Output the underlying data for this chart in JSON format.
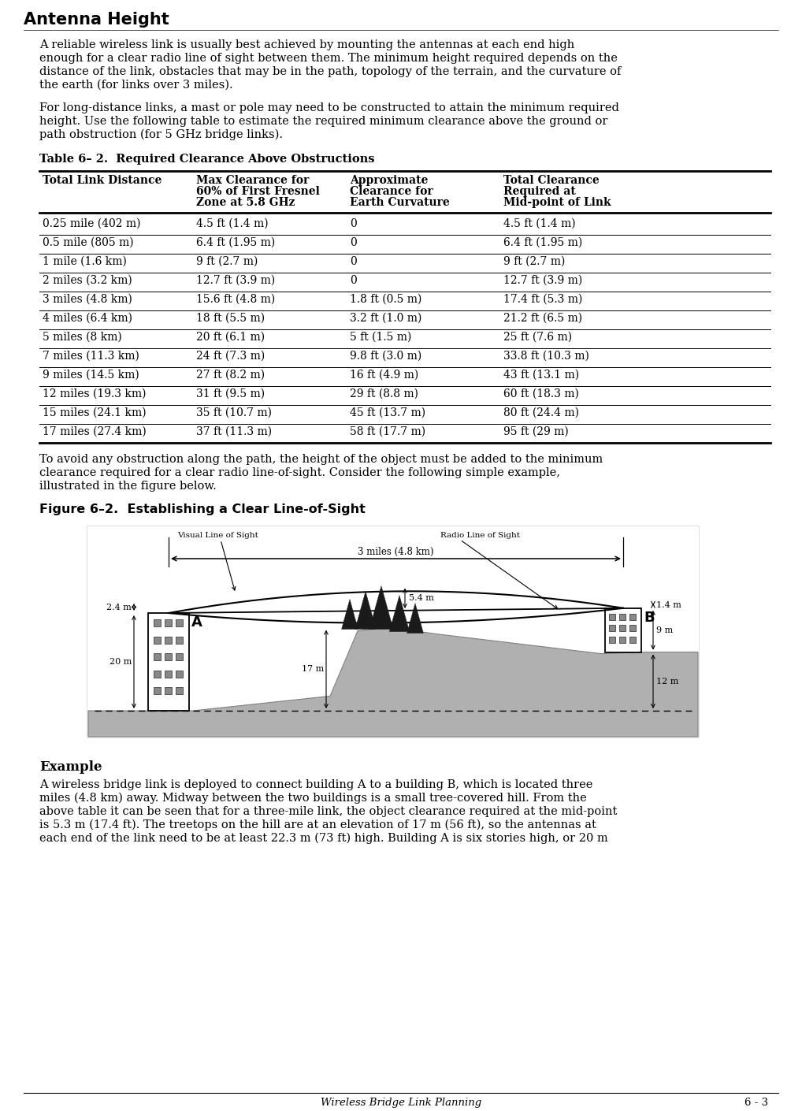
{
  "title": "Antenna Height",
  "para1_lines": [
    "A reliable wireless link is usually best achieved by mounting the antennas at each end high",
    "enough for a clear radio line of sight between them. The minimum height required depends on the",
    "distance of the link, obstacles that may be in the path, topology of the terrain, and the curvature of",
    "the earth (for links over 3 miles)."
  ],
  "para2_lines": [
    "For long-distance links, a mast or pole may need to be constructed to attain the minimum required",
    "height. Use the following table to estimate the required minimum clearance above the ground or",
    "path obstruction (for 5 GHz bridge links)."
  ],
  "table_title": "Table 6– 2.  Required Clearance Above Obstructions",
  "col_headers": [
    "Total Link Distance",
    "Max Clearance for\n60% of First Fresnel\nZone at 5.8 GHz",
    "Approximate\nClearance for\nEarth Curvature",
    "Total Clearance\nRequired at\nMid-point of Link"
  ],
  "table_data": [
    [
      "0.25 mile (402 m)",
      "4.5 ft (1.4 m)",
      "0",
      "4.5 ft (1.4 m)"
    ],
    [
      "0.5 mile (805 m)",
      "6.4 ft (1.95 m)",
      "0",
      "6.4 ft (1.95 m)"
    ],
    [
      "1 mile (1.6 km)",
      "9 ft (2.7 m)",
      "0",
      "9 ft (2.7 m)"
    ],
    [
      "2 miles (3.2 km)",
      "12.7 ft (3.9 m)",
      "0",
      "12.7 ft (3.9 m)"
    ],
    [
      "3 miles (4.8 km)",
      "15.6 ft (4.8 m)",
      "1.8 ft (0.5 m)",
      "17.4 ft (5.3 m)"
    ],
    [
      "4 miles (6.4 km)",
      "18 ft (5.5 m)",
      "3.2 ft (1.0 m)",
      "21.2 ft (6.5 m)"
    ],
    [
      "5 miles (8 km)",
      "20 ft (6.1 m)",
      "5 ft (1.5 m)",
      "25 ft (7.6 m)"
    ],
    [
      "7 miles (11.3 km)",
      "24 ft (7.3 m)",
      "9.8 ft (3.0 m)",
      "33.8 ft (10.3 m)"
    ],
    [
      "9 miles (14.5 km)",
      "27 ft (8.2 m)",
      "16 ft (4.9 m)",
      "43 ft (13.1 m)"
    ],
    [
      "12 miles (19.3 km)",
      "31 ft (9.5 m)",
      "29 ft (8.8 m)",
      "60 ft (18.3 m)"
    ],
    [
      "15 miles (24.1 km)",
      "35 ft (10.7 m)",
      "45 ft (13.7 m)",
      "80 ft (24.4 m)"
    ],
    [
      "17 miles (27.4 km)",
      "37 ft (11.3 m)",
      "58 ft (17.7 m)",
      "95 ft (29 m)"
    ]
  ],
  "para3_lines": [
    "To avoid any obstruction along the path, the height of the object must be added to the minimum",
    "clearance required for a clear radio line-of-sight. Consider the following simple example,",
    "illustrated in the figure below."
  ],
  "fig_caption": "Figure 6–2.  Establishing a Clear Line-of-Sight",
  "example_title": "Example",
  "example_lines": [
    "A wireless bridge link is deployed to connect building A to a building B, which is located three",
    "miles (4.8 km) away. Midway between the two buildings is a small tree-covered hill. From the",
    "above table it can be seen that for a three-mile link, the object clearance required at the mid-point",
    "is 5.3 m (17.4 ft). The treetops on the hill are at an elevation of 17 m (56 ft), so the antennas at",
    "each end of the link need to be at least 22.3 m (73 ft) high. Building A is six stories high, or 20 m"
  ],
  "footer_text": "Wireless Bridge Link Planning",
  "footer_right": "6 - 3"
}
